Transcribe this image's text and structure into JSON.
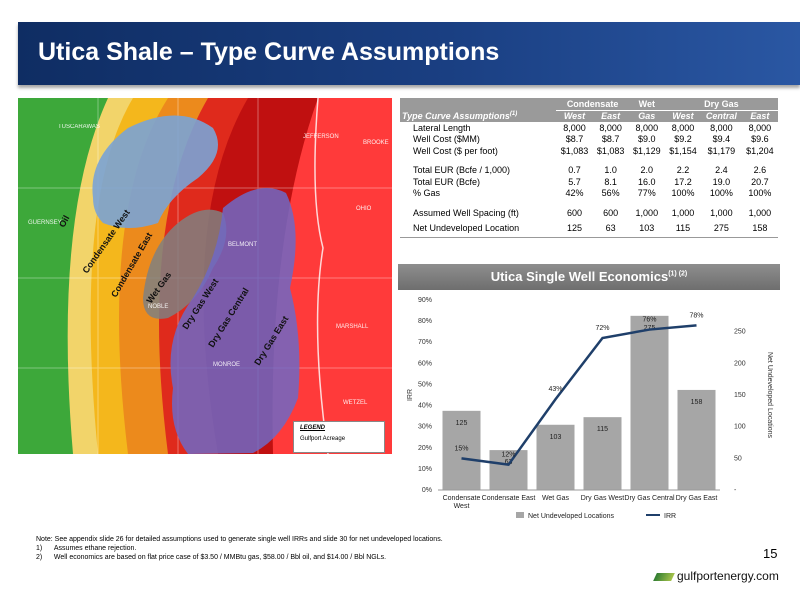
{
  "title": "Utica Shale – Type Curve Assumptions",
  "map": {
    "zones": [
      "Oil",
      "Condensate West",
      "Condensate East",
      "Wet Gas",
      "Dry Gas West",
      "Dry Gas Central",
      "Dry Gas East"
    ],
    "counties": [
      "TUSCARAWAS",
      "GUERNSEY",
      "NOBLE",
      "BELMONT",
      "MONROE",
      "JEFFERSON",
      "MARSHALL",
      "WETZEL",
      "OHIO",
      "BROOKE"
    ],
    "legend_title": "LEGEND",
    "legend_item": "Gulfport Acreage",
    "colors": {
      "oil": "#3da83a",
      "cond_light": "#f2d46a",
      "cond_west": "#f4b71c",
      "cond_east": "#ec8a1c",
      "wet": "#df2a1c",
      "dry_west": "#c01010",
      "dry_east": "#ff3a3a",
      "acreage": "#6f68c6"
    }
  },
  "table": {
    "group_headers": [
      "Condensate",
      "Wet",
      "Dry Gas"
    ],
    "row_header": "Type Curve Assumptions",
    "row_header_sup": "(1)",
    "columns": [
      "West",
      "East",
      "Gas",
      "West",
      "Central",
      "East"
    ],
    "rows": [
      {
        "label": "Lateral Length",
        "values": [
          "8,000",
          "8,000",
          "8,000",
          "8,000",
          "8,000",
          "8,000"
        ]
      },
      {
        "label": "Well Cost ($MM)",
        "values": [
          "$8.7",
          "$8.7",
          "$9.0",
          "$9.2",
          "$9.4",
          "$9.6"
        ]
      },
      {
        "label": "Well Cost ($ per foot)",
        "values": [
          "$1,083",
          "$1,083",
          "$1,129",
          "$1,154",
          "$1,179",
          "$1,204"
        ]
      },
      {
        "label": "Total EUR (Bcfe / 1,000)",
        "values": [
          "0.7",
          "1.0",
          "2.0",
          "2.2",
          "2.4",
          "2.6"
        ]
      },
      {
        "label": "Total EUR (Bcfe)",
        "values": [
          "5.7",
          "8.1",
          "16.0",
          "17.2",
          "19.0",
          "20.7"
        ]
      },
      {
        "label": "% Gas",
        "values": [
          "42%",
          "56%",
          "77%",
          "100%",
          "100%",
          "100%"
        ]
      },
      {
        "label": "Assumed Well Spacing (ft)",
        "values": [
          "600",
          "600",
          "1,000",
          "1,000",
          "1,000",
          "1,000"
        ]
      },
      {
        "label": "Net Undeveloped Location",
        "values": [
          "125",
          "63",
          "103",
          "115",
          "275",
          "158"
        ]
      }
    ]
  },
  "econ_title": "Utica Single Well Economics",
  "econ_title_sup": "(1) (2)",
  "chart_data": {
    "type": "bar",
    "categories": [
      "Condensate West",
      "Condensate East",
      "Wet Gas",
      "Dry Gas West",
      "Dry Gas Central",
      "Dry Gas East"
    ],
    "series": [
      {
        "name": "Net Undeveloped Locations",
        "type": "bar",
        "axis": "right",
        "values": [
          125,
          63,
          103,
          115,
          275,
          158
        ],
        "labels": [
          "125",
          "63",
          "103",
          "115",
          "275",
          "158"
        ],
        "color": "#a6a6a6"
      },
      {
        "name": "IRR",
        "type": "line",
        "axis": "left",
        "values": [
          15,
          12,
          43,
          72,
          76,
          78
        ],
        "labels": [
          "15%",
          "12%",
          "43%",
          "72%",
          "76%",
          "78%"
        ],
        "color": "#1f3f6a"
      }
    ],
    "ylabel": "IRR",
    "y2label": "Net Undeveloped Locations",
    "ylim": [
      0,
      90
    ],
    "y2lim": [
      0,
      300
    ],
    "yticks": [
      "0%",
      "10%",
      "20%",
      "30%",
      "40%",
      "50%",
      "60%",
      "70%",
      "80%",
      "90%"
    ],
    "y2ticks": [
      "-",
      "50",
      "100",
      "150",
      "200",
      "250"
    ],
    "legend_position": "bottom"
  },
  "footnotes": [
    "Note: See appendix slide 26 for detailed assumptions used to generate single well IRRs and slide 30 for net undeveloped locations.",
    "1)      Assumes ethane rejection.",
    "2)      Well economics are based on flat price case of $3.50 / MMBtu gas, $58.00 / Bbl oil, and $14.00 / Bbl NGLs."
  ],
  "page_number": "15",
  "logo_text": "gulfportenergy.com"
}
